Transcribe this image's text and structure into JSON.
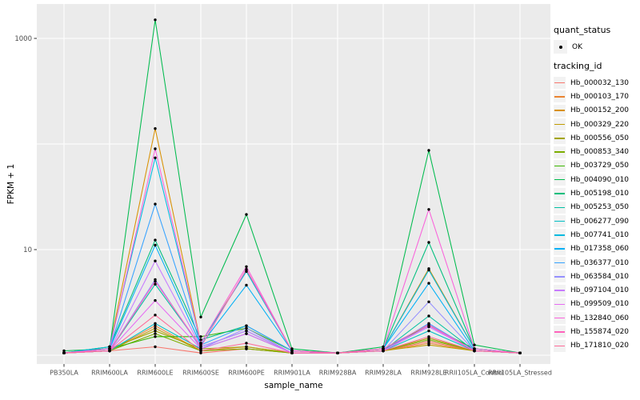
{
  "figure": {
    "background": "#FFFFFF",
    "panel_background": "#EBEBEB",
    "gridline_color": "#FFFFFF",
    "axis_text_color": "#4D4D4D",
    "tick_color": "#333333",
    "point_color": "#000000",
    "legend_key_background": "#F2F2F2"
  },
  "legend": {
    "quant_status_title": "quant_status",
    "ok_label": "OK",
    "tracking_id_title": "tracking_id"
  },
  "chart_data": {
    "type": "line",
    "title": "",
    "xlabel": "sample_name",
    "ylabel": "FPKM + 1",
    "y_scale": "log10",
    "legend_position": "right",
    "quant_status": "OK",
    "point_shape": "filled-circle",
    "y_gridline_values": [
      1,
      10,
      100,
      1000
    ],
    "y_ticks": [
      {
        "value": 1000,
        "label": "1000"
      },
      {
        "value": 10,
        "label": "10"
      }
    ],
    "categories": [
      "PB350LA",
      "RRIM600LA",
      "RRIM600LE",
      "RRIM600SE",
      "RRIM600PE",
      "RRIM901LA",
      "RRIM928BA",
      "RRIM928LA",
      "RRIM928LE",
      "RRII105LA_Control",
      "RRII105LA_Stressed"
    ],
    "series": [
      {
        "name": "Hb_000032_130",
        "color": "#F8766D",
        "values": [
          1.05,
          1.1,
          1.2,
          1.05,
          1.15,
          1.05,
          1.05,
          1.1,
          1.35,
          1.1,
          1.05
        ]
      },
      {
        "name": "Hb_000103_170",
        "color": "#EA8331",
        "values": [
          1.05,
          1.1,
          1.9,
          1.1,
          1.2,
          1.05,
          1.05,
          1.1,
          1.3,
          1.1,
          1.05
        ]
      },
      {
        "name": "Hb_000152_200",
        "color": "#D89000",
        "values": [
          1.05,
          1.2,
          140,
          1.3,
          6.3,
          1.1,
          1.05,
          1.15,
          6.6,
          1.15,
          1.05
        ]
      },
      {
        "name": "Hb_000329_220",
        "color": "#C09B00",
        "values": [
          1.05,
          1.1,
          1.8,
          1.1,
          1.15,
          1.05,
          1.05,
          1.1,
          1.25,
          1.1,
          1.05
        ]
      },
      {
        "name": "Hb_000556_050",
        "color": "#A3A500",
        "values": [
          1.05,
          1.15,
          1.7,
          1.15,
          1.2,
          1.05,
          1.05,
          1.1,
          1.45,
          1.1,
          1.05
        ]
      },
      {
        "name": "Hb_000853_340",
        "color": "#7CAE00",
        "values": [
          1.05,
          1.1,
          1.6,
          1.1,
          1.15,
          1.05,
          1.05,
          1.1,
          1.4,
          1.1,
          1.05
        ]
      },
      {
        "name": "Hb_003729_050",
        "color": "#39B600",
        "values": [
          1.05,
          1.15,
          1.5,
          1.5,
          1.8,
          1.1,
          1.05,
          1.15,
          1.9,
          1.15,
          1.05
        ]
      },
      {
        "name": "Hb_004090_010",
        "color": "#00BB4E",
        "values": [
          1.1,
          1.15,
          1500,
          2.3,
          21.5,
          1.15,
          1.05,
          1.2,
          87,
          1.25,
          1.05
        ]
      },
      {
        "name": "Hb_005198_010",
        "color": "#00BF7D",
        "values": [
          1.05,
          1.2,
          12.3,
          1.4,
          1.9,
          1.1,
          1.05,
          1.15,
          11.7,
          1.15,
          1.05
        ]
      },
      {
        "name": "Hb_005253_050",
        "color": "#00C1A3",
        "values": [
          1.05,
          1.1,
          4.7,
          1.2,
          1.7,
          1.05,
          1.05,
          1.1,
          2.35,
          1.1,
          1.05
        ]
      },
      {
        "name": "Hb_006277_090",
        "color": "#00BFC4",
        "values": [
          1.05,
          1.1,
          2.0,
          1.15,
          1.6,
          1.05,
          1.05,
          1.1,
          1.7,
          1.1,
          1.05
        ]
      },
      {
        "name": "Hb_007741_010",
        "color": "#00BAE0",
        "values": [
          1.05,
          1.2,
          74,
          1.3,
          6.2,
          1.1,
          1.05,
          1.15,
          6.4,
          1.15,
          1.05
        ]
      },
      {
        "name": "Hb_017358_060",
        "color": "#00B0F6",
        "values": [
          1.05,
          1.15,
          11.0,
          1.25,
          4.6,
          1.1,
          1.05,
          1.15,
          4.8,
          1.1,
          1.05
        ]
      },
      {
        "name": "Hb_036377_010",
        "color": "#35A2FF",
        "values": [
          1.05,
          1.15,
          27,
          1.25,
          1.9,
          1.1,
          1.05,
          1.1,
          2.0,
          1.1,
          1.05
        ]
      },
      {
        "name": "Hb_063584_010",
        "color": "#9590FF",
        "values": [
          1.05,
          1.1,
          5.2,
          1.15,
          1.8,
          1.05,
          1.05,
          1.1,
          3.2,
          1.1,
          1.05
        ]
      },
      {
        "name": "Hb_097104_010",
        "color": "#C77CFF",
        "values": [
          1.05,
          1.1,
          7.8,
          1.2,
          1.7,
          1.05,
          1.05,
          1.1,
          1.85,
          1.1,
          1.05
        ]
      },
      {
        "name": "Hb_099509_010",
        "color": "#E76BF3",
        "values": [
          1.05,
          1.1,
          3.3,
          1.15,
          1.6,
          1.05,
          1.05,
          1.1,
          1.9,
          1.1,
          1.05
        ]
      },
      {
        "name": "Hb_132840_060",
        "color": "#FA62DB",
        "values": [
          1.05,
          1.15,
          90,
          1.3,
          6.9,
          1.1,
          1.05,
          1.15,
          24,
          1.15,
          1.05
        ]
      },
      {
        "name": "Hb_155874_020",
        "color": "#FF62BC",
        "values": [
          1.05,
          1.1,
          5.0,
          1.2,
          6.5,
          1.1,
          1.05,
          1.15,
          1.95,
          1.1,
          1.05
        ]
      },
      {
        "name": "Hb_171810_020",
        "color": "#FF6A98",
        "values": [
          1.05,
          1.1,
          2.4,
          1.1,
          1.3,
          1.05,
          1.05,
          1.1,
          1.5,
          1.1,
          1.05
        ]
      }
    ]
  }
}
